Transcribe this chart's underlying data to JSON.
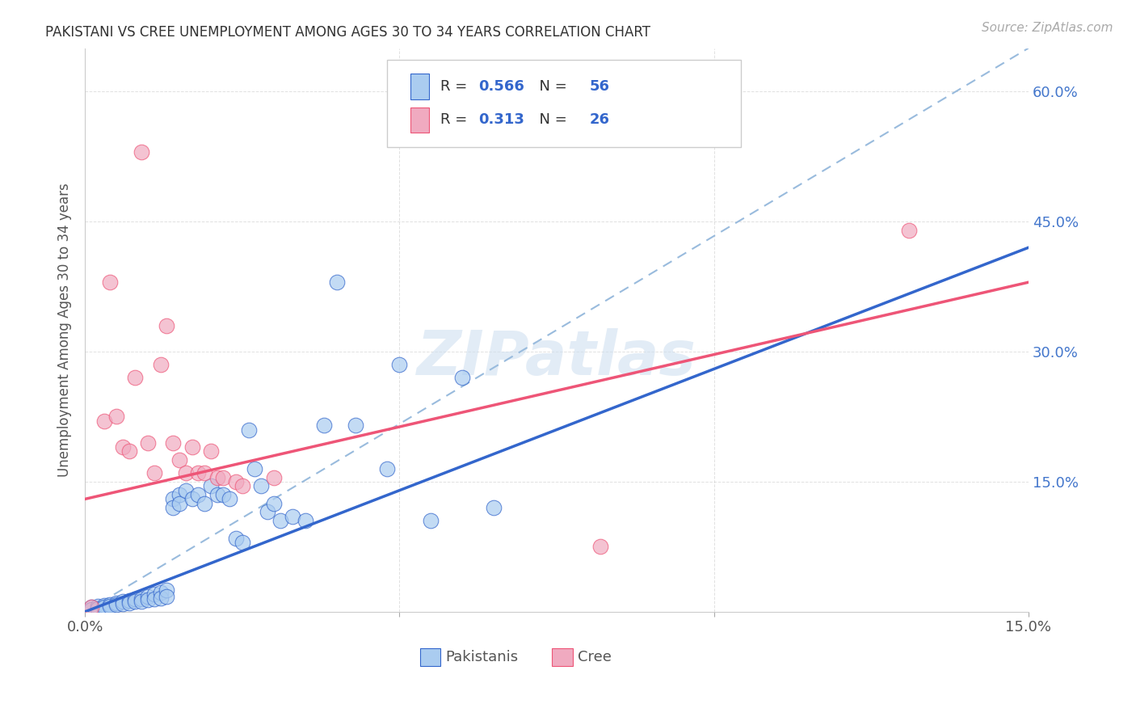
{
  "title": "PAKISTANI VS CREE UNEMPLOYMENT AMONG AGES 30 TO 34 YEARS CORRELATION CHART",
  "source": "Source: ZipAtlas.com",
  "ylabel": "Unemployment Among Ages 30 to 34 years",
  "xlim": [
    0.0,
    0.15
  ],
  "ylim": [
    0.0,
    0.65
  ],
  "x_tick_positions": [
    0.0,
    0.05,
    0.1,
    0.15
  ],
  "x_tick_labels": [
    "0.0%",
    "",
    "",
    "15.0%"
  ],
  "y_tick_positions": [
    0.0,
    0.15,
    0.3,
    0.45,
    0.6
  ],
  "y_tick_labels": [
    "",
    "15.0%",
    "30.0%",
    "45.0%",
    "60.0%"
  ],
  "pakistani_R": "0.566",
  "pakistani_N": "56",
  "cree_R": "0.313",
  "cree_N": "26",
  "pakistani_color": "#aaccf0",
  "cree_color": "#f0aac0",
  "pakistani_line_color": "#3366cc",
  "cree_line_color": "#ee5577",
  "dashed_line_color": "#99bbdd",
  "watermark_color": "#d0e0f0",
  "background_color": "#ffffff",
  "grid_color": "#cccccc",
  "pakistani_scatter": [
    [
      0.001,
      0.005
    ],
    [
      0.001,
      0.003
    ],
    [
      0.002,
      0.006
    ],
    [
      0.002,
      0.004
    ],
    [
      0.003,
      0.007
    ],
    [
      0.003,
      0.005
    ],
    [
      0.004,
      0.008
    ],
    [
      0.004,
      0.006
    ],
    [
      0.005,
      0.01
    ],
    [
      0.005,
      0.008
    ],
    [
      0.006,
      0.012
    ],
    [
      0.006,
      0.009
    ],
    [
      0.007,
      0.013
    ],
    [
      0.007,
      0.01
    ],
    [
      0.008,
      0.015
    ],
    [
      0.008,
      0.012
    ],
    [
      0.009,
      0.015
    ],
    [
      0.009,
      0.012
    ],
    [
      0.01,
      0.018
    ],
    [
      0.01,
      0.014
    ],
    [
      0.011,
      0.02
    ],
    [
      0.011,
      0.015
    ],
    [
      0.012,
      0.022
    ],
    [
      0.012,
      0.016
    ],
    [
      0.013,
      0.025
    ],
    [
      0.013,
      0.018
    ],
    [
      0.014,
      0.13
    ],
    [
      0.014,
      0.12
    ],
    [
      0.015,
      0.135
    ],
    [
      0.015,
      0.125
    ],
    [
      0.016,
      0.14
    ],
    [
      0.017,
      0.13
    ],
    [
      0.018,
      0.135
    ],
    [
      0.019,
      0.125
    ],
    [
      0.02,
      0.145
    ],
    [
      0.021,
      0.135
    ],
    [
      0.022,
      0.135
    ],
    [
      0.023,
      0.13
    ],
    [
      0.024,
      0.085
    ],
    [
      0.025,
      0.08
    ],
    [
      0.026,
      0.21
    ],
    [
      0.027,
      0.165
    ],
    [
      0.028,
      0.145
    ],
    [
      0.029,
      0.115
    ],
    [
      0.03,
      0.125
    ],
    [
      0.031,
      0.105
    ],
    [
      0.033,
      0.11
    ],
    [
      0.035,
      0.105
    ],
    [
      0.038,
      0.215
    ],
    [
      0.04,
      0.38
    ],
    [
      0.043,
      0.215
    ],
    [
      0.048,
      0.165
    ],
    [
      0.05,
      0.285
    ],
    [
      0.055,
      0.105
    ],
    [
      0.06,
      0.27
    ],
    [
      0.065,
      0.12
    ]
  ],
  "cree_scatter": [
    [
      0.001,
      0.005
    ],
    [
      0.003,
      0.22
    ],
    [
      0.004,
      0.38
    ],
    [
      0.005,
      0.225
    ],
    [
      0.006,
      0.19
    ],
    [
      0.007,
      0.185
    ],
    [
      0.008,
      0.27
    ],
    [
      0.009,
      0.53
    ],
    [
      0.01,
      0.195
    ],
    [
      0.011,
      0.16
    ],
    [
      0.012,
      0.285
    ],
    [
      0.013,
      0.33
    ],
    [
      0.014,
      0.195
    ],
    [
      0.015,
      0.175
    ],
    [
      0.016,
      0.16
    ],
    [
      0.017,
      0.19
    ],
    [
      0.018,
      0.16
    ],
    [
      0.019,
      0.16
    ],
    [
      0.02,
      0.185
    ],
    [
      0.021,
      0.155
    ],
    [
      0.022,
      0.155
    ],
    [
      0.024,
      0.15
    ],
    [
      0.025,
      0.145
    ],
    [
      0.03,
      0.155
    ],
    [
      0.131,
      0.44
    ],
    [
      0.082,
      0.075
    ]
  ],
  "pak_line": [
    0.0,
    0.0,
    0.15,
    0.42
  ],
  "cree_line": [
    0.0,
    0.13,
    0.15,
    0.38
  ],
  "dashed_line": [
    0.0,
    0.0,
    0.15,
    0.65
  ]
}
